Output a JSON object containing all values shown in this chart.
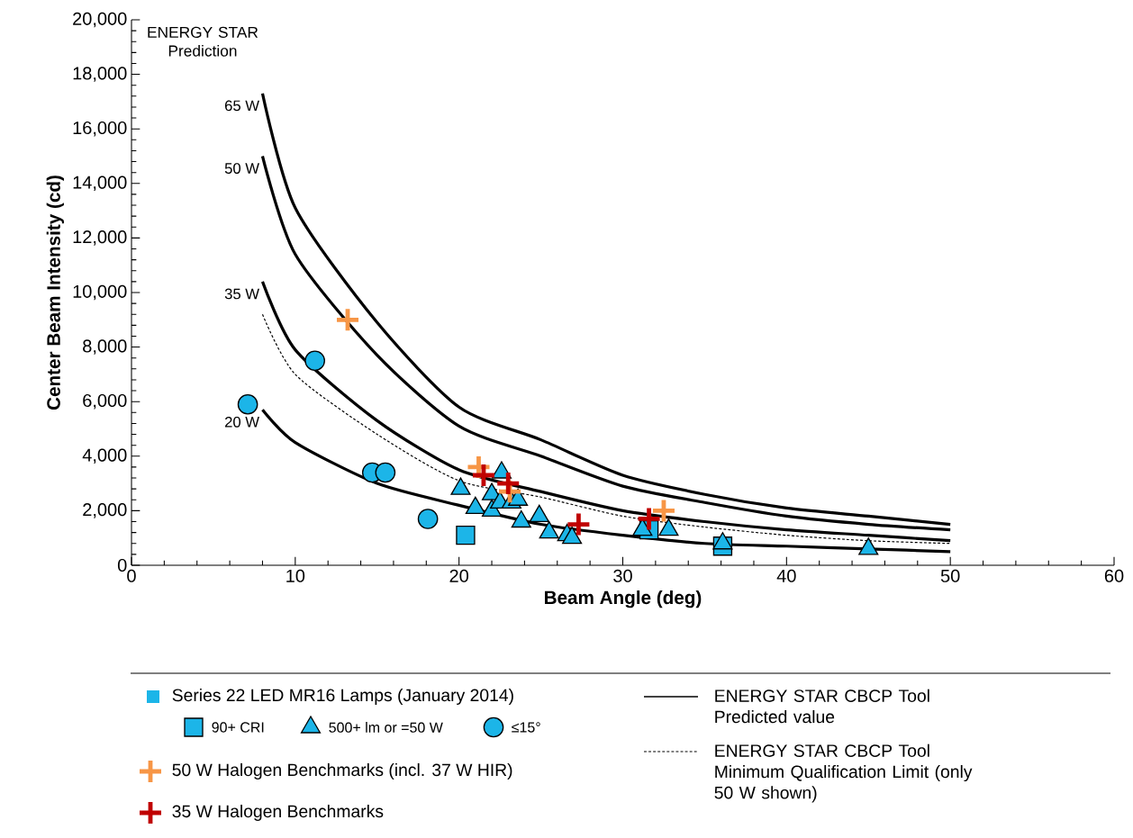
{
  "chart_data": {
    "type": "scatter",
    "xlabel": "Beam Angle (deg)",
    "ylabel": "Center Beam Intensity (cd)",
    "xlim": [
      0,
      60
    ],
    "xticks": [
      0,
      10,
      20,
      30,
      40,
      50,
      60
    ],
    "ylim": [
      0,
      20000
    ],
    "yticks": [
      {
        "value": 0,
        "label": "0"
      },
      {
        "value": 2000,
        "label": "2,000"
      },
      {
        "value": 4000,
        "label": "4,000"
      },
      {
        "value": 6000,
        "label": "6,000"
      },
      {
        "value": 8000,
        "label": "8,000"
      },
      {
        "value": 10000,
        "label": "10,000"
      },
      {
        "value": 12000,
        "label": "12,000"
      },
      {
        "value": 14000,
        "label": "14,000"
      },
      {
        "value": 16000,
        "label": "16,000"
      },
      {
        "value": 18000,
        "label": "18,000"
      },
      {
        "value": 20000,
        "label": "20,000"
      }
    ],
    "legend": "bottom",
    "legend_title": "Series 22 LED MR16 Lamps (January 2014)",
    "annotations": [
      "ENERGY STAR Prediction",
      "ENERGY STAR CBCP Tool Predicted value"
    ],
    "series": [
      {
        "name": "90+ CRI",
        "marker": "square",
        "color": "#1cb5e8",
        "x": [
          20.4,
          31.6,
          36.1
        ],
        "values": [
          1100,
          1300,
          700
        ]
      },
      {
        "name": "500+ lm or =50 W",
        "marker": "triangle",
        "color": "#1cb5e8",
        "x": [
          20.1,
          21.0,
          22.0,
          22.0,
          22.5,
          22.6,
          23.2,
          23.6,
          23.8,
          24.9,
          25.5,
          26.6,
          26.9,
          31.2,
          32.8,
          36.1,
          45.0
        ],
        "values": [
          2800,
          2100,
          2600,
          2000,
          2300,
          3400,
          2300,
          2400,
          1600,
          1800,
          1200,
          1100,
          1000,
          1300,
          1300,
          800,
          600
        ]
      },
      {
        "name": "≤15°",
        "marker": "circle",
        "color": "#1cb5e8",
        "x": [
          7.1,
          11.2,
          14.7,
          15.5,
          18.1
        ],
        "values": [
          5900,
          7500,
          3400,
          3400,
          1700
        ]
      },
      {
        "name": "50 W Halogen Benchmarks (incl. 37 W HIR)",
        "marker": "cross",
        "color": "#f79646",
        "x": [
          13.2,
          21.2,
          23.1,
          32.5
        ],
        "values": [
          9000,
          3600,
          2700,
          2000
        ]
      },
      {
        "name": "35 W Halogen Benchmarks",
        "marker": "cross",
        "color": "#c00000",
        "x": [
          21.5,
          23.0,
          27.3,
          31.6
        ],
        "values": [
          3300,
          3000,
          1500,
          1700
        ]
      },
      {
        "name": "65 W",
        "type": "line",
        "marker": "none",
        "line_style": "solid",
        "color": "#000000",
        "x": [
          8,
          10,
          15,
          20,
          25,
          30,
          35,
          40,
          45,
          50
        ],
        "values": [
          17300,
          13100,
          8900,
          5800,
          4600,
          3300,
          2600,
          2100,
          1800,
          1500
        ]
      },
      {
        "name": "50 W",
        "type": "line",
        "marker": "none",
        "line_style": "solid",
        "color": "#000000",
        "x": [
          8,
          10,
          15,
          20,
          25,
          30,
          35,
          40,
          45,
          50
        ],
        "values": [
          15000,
          11400,
          7700,
          5100,
          4000,
          2900,
          2300,
          1800,
          1500,
          1300
        ]
      },
      {
        "name": "35 W",
        "type": "line",
        "marker": "none",
        "line_style": "solid",
        "color": "#000000",
        "x": [
          8,
          10,
          15,
          20,
          25,
          30,
          35,
          40,
          45,
          50
        ],
        "values": [
          10400,
          7900,
          5300,
          3500,
          2700,
          2000,
          1600,
          1300,
          1100,
          900
        ]
      },
      {
        "name": "20 W",
        "type": "line",
        "marker": "none",
        "line_style": "solid",
        "color": "#000000",
        "x": [
          8,
          10,
          15,
          20,
          25,
          30,
          35,
          40,
          45,
          50
        ],
        "values": [
          5700,
          4500,
          3000,
          2200,
          1500,
          1100,
          800,
          700,
          600,
          500
        ]
      },
      {
        "name": "ENERGY STAR CBCP Tool Minimum Qualification Limit (only 50 W shown)",
        "type": "line",
        "marker": "none",
        "line_style": "dashed",
        "color": "#000000",
        "x": [
          8,
          10,
          15,
          20,
          25,
          30,
          35,
          40,
          45,
          50
        ],
        "values": [
          9200,
          7000,
          4800,
          3100,
          2500,
          1800,
          1400,
          1100,
          900,
          800
        ]
      }
    ]
  }
}
